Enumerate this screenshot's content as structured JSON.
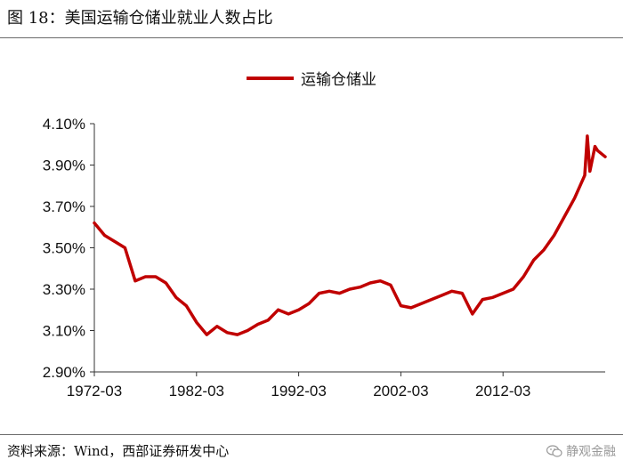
{
  "figure": {
    "title": "图 18：美国运输仓储业就业人数占比",
    "source": "资料来源：Wind，西部证券研发中心",
    "watermark": "静观金融",
    "watermark_icon": "wechat-icon"
  },
  "chart_data": {
    "type": "line",
    "series": [
      {
        "name": "运输仓储业",
        "color": "#c00000",
        "x": [
          "1972-03",
          "1973-03",
          "1974-03",
          "1975-03",
          "1976-03",
          "1977-03",
          "1978-03",
          "1979-03",
          "1980-03",
          "1981-03",
          "1982-03",
          "1983-03",
          "1984-03",
          "1985-03",
          "1986-03",
          "1987-03",
          "1988-03",
          "1989-03",
          "1990-03",
          "1991-03",
          "1992-03",
          "1993-03",
          "1994-03",
          "1995-03",
          "1996-03",
          "1997-03",
          "1998-03",
          "1999-03",
          "2000-03",
          "2001-03",
          "2002-03",
          "2003-03",
          "2004-03",
          "2005-03",
          "2006-03",
          "2007-03",
          "2008-03",
          "2009-03",
          "2010-03",
          "2011-03",
          "2012-03",
          "2013-03",
          "2014-03",
          "2015-03",
          "2016-03",
          "2017-03",
          "2018-03",
          "2019-03",
          "2020-03",
          "2020-06",
          "2020-09",
          "2021-03",
          "2021-06",
          "2022-03"
        ],
        "values": [
          3.62,
          3.56,
          3.53,
          3.5,
          3.34,
          3.36,
          3.36,
          3.33,
          3.26,
          3.22,
          3.14,
          3.08,
          3.12,
          3.09,
          3.08,
          3.1,
          3.13,
          3.15,
          3.2,
          3.18,
          3.2,
          3.23,
          3.28,
          3.29,
          3.28,
          3.3,
          3.31,
          3.33,
          3.34,
          3.32,
          3.22,
          3.21,
          3.23,
          3.25,
          3.27,
          3.29,
          3.28,
          3.18,
          3.25,
          3.26,
          3.28,
          3.3,
          3.36,
          3.44,
          3.49,
          3.56,
          3.65,
          3.74,
          3.85,
          4.04,
          3.87,
          3.99,
          3.97,
          3.94
        ]
      }
    ],
    "x_ticks": [
      "1972-03",
      "1982-03",
      "1992-03",
      "2002-03",
      "2012-03"
    ],
    "y_ticks": [
      "2.90%",
      "3.10%",
      "3.30%",
      "3.50%",
      "3.70%",
      "3.90%",
      "4.10%"
    ],
    "ylim": [
      2.9,
      4.1
    ],
    "xlim": [
      "1972-03",
      "2022-03"
    ],
    "legend_position": "top-center",
    "grid": false
  }
}
